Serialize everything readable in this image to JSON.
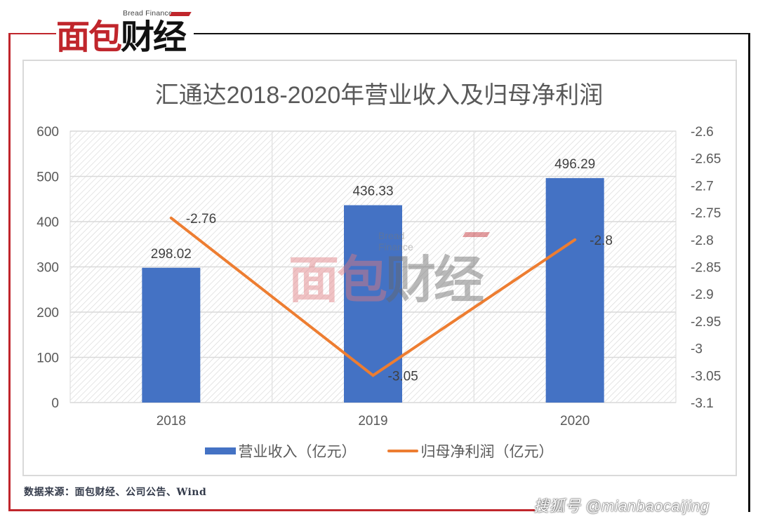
{
  "brand": {
    "logo_text_red": "面包",
    "logo_text_black": "财经",
    "logo_subtitle": "Bread Finance",
    "accent_red": "#c0262c"
  },
  "chart_data": {
    "type": "bar+line",
    "title": "汇通达2018-2020年营业收入及归母净利润",
    "categories": [
      "2018",
      "2019",
      "2020"
    ],
    "series": [
      {
        "name": "营业收入（亿元）",
        "type": "bar",
        "axis": "left",
        "color": "#4472c4",
        "values": [
          298.02,
          436.33,
          496.29
        ],
        "labels": [
          "298.02",
          "436.33",
          "496.29"
        ]
      },
      {
        "name": "归母净利润（亿元）",
        "type": "line",
        "axis": "right",
        "color": "#ed7d31",
        "values": [
          -2.76,
          -3.05,
          -2.8
        ],
        "labels": [
          "-2.76",
          "-3.05",
          "-2.8"
        ]
      }
    ],
    "left_axis": {
      "ylim": [
        0,
        600
      ],
      "ticks": [
        "0",
        "100",
        "200",
        "300",
        "400",
        "500",
        "600"
      ]
    },
    "right_axis": {
      "ylim": [
        -3.1,
        -2.6
      ],
      "ticks": [
        "-2.6",
        "-2.65",
        "-2.7",
        "-2.75",
        "-2.8",
        "-2.85",
        "-2.9",
        "-2.95",
        "-3",
        "-3.05",
        "-3.1"
      ]
    },
    "xlabel": "",
    "ylabel": "",
    "grid": true,
    "legend_position": "bottom"
  },
  "legend": {
    "bar_label": "营业收入（亿元）",
    "line_label": "归母净利润（亿元）"
  },
  "footer": {
    "source": "数据来源：面包财经、公司公告、Wind",
    "watermark": "搜狐号 @mianbaocaijing"
  }
}
